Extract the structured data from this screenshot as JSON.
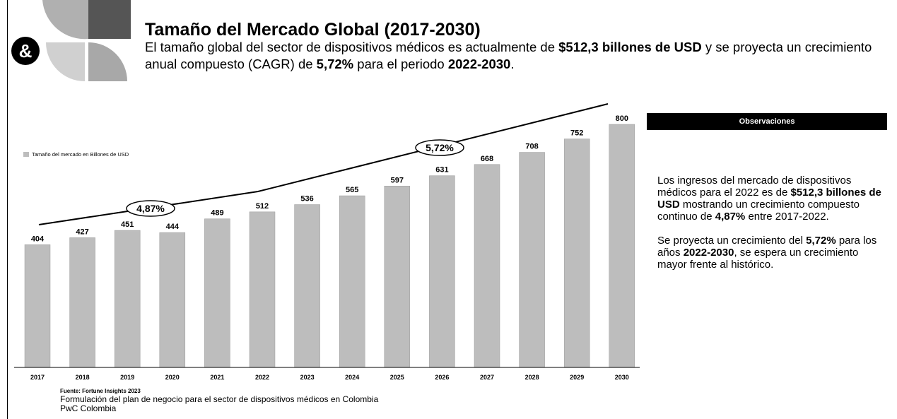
{
  "logo": "&",
  "header": {
    "title": "Tamaño del Mercado Global (2017-2030)",
    "subtitle": [
      "El tamaño global del sector de dispositivos médicos es actualmente de ",
      "$512,3 billones de USD",
      " y se proyecta un crecimiento anual compuesto (CAGR) de ",
      "5,72%",
      " para el periodo ",
      "2022-2030",
      "."
    ]
  },
  "chart_data": {
    "type": "bar",
    "categories": [
      "2017",
      "2018",
      "2019",
      "2020",
      "2021",
      "2022",
      "2023",
      "2024",
      "2025",
      "2026",
      "2027",
      "2028",
      "2029",
      "2030"
    ],
    "series": [
      {
        "name": "Tamaño del mercado en Billones de USD",
        "color": "#bdbdbd",
        "values": [
          404,
          427,
          451,
          444,
          489,
          512,
          536,
          565,
          597,
          631,
          668,
          708,
          752,
          800
        ]
      }
    ],
    "annotations": [
      "4,87%",
      "5,72%"
    ]
  },
  "observations": {
    "title": "Observaciones",
    "paragraphs": [
      [
        "Los ingresos del mercado de dispositivos médicos para el 2022 es de ",
        "$512,3 billones de USD",
        " mostrando un crecimiento compuesto continuo de ",
        "4,87%",
        " entre 2017-2022."
      ],
      [
        "Se proyecta un crecimiento del ",
        "5,72%",
        " para los años ",
        "2022-2030",
        ", se espera un crecimiento mayor frente al histórico."
      ]
    ]
  },
  "footer": {
    "source": "Fuente: Fortune Insights 2023",
    "lines": [
      "Formulación del plan de negocio para el sector de dispositivos médicos en Colombia",
      "PwC Colombia"
    ]
  }
}
